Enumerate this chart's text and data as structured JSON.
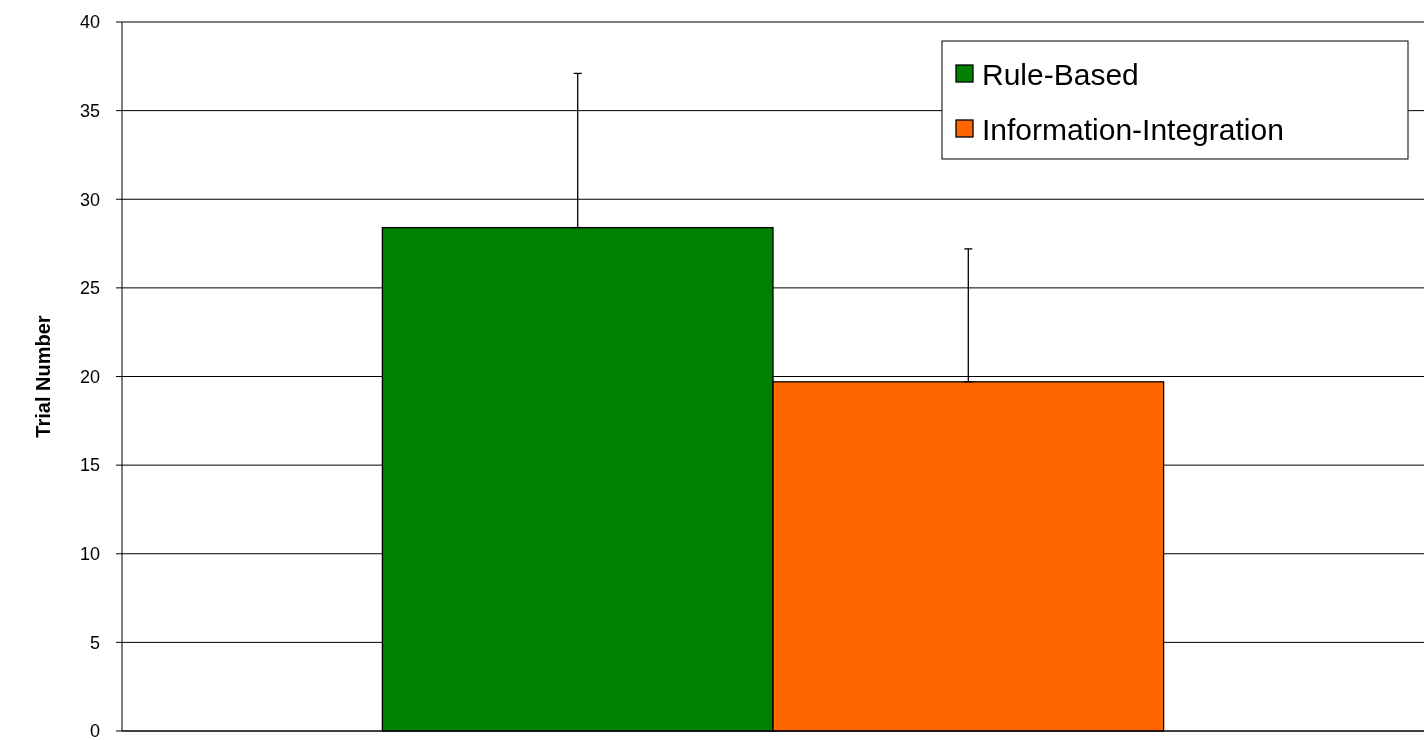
{
  "chart_data": {
    "type": "bar",
    "ylabel": "Trial Number",
    "categories": [
      null
    ],
    "series": [
      {
        "name": "Rule-Based",
        "color": "#008000",
        "values": [
          28.4
        ],
        "errors": [
          [
            28.4,
            37.1
          ]
        ]
      },
      {
        "name": "Information-Integration",
        "color": "#ff6600",
        "values": [
          19.7
        ],
        "errors": [
          [
            19.7,
            27.2
          ]
        ]
      }
    ],
    "ylim": [
      0,
      40
    ],
    "yticks": [
      0,
      5,
      10,
      15,
      20,
      25,
      30,
      35,
      40
    ],
    "grid": "y",
    "legend": "top right",
    "tick_labels": "y"
  }
}
